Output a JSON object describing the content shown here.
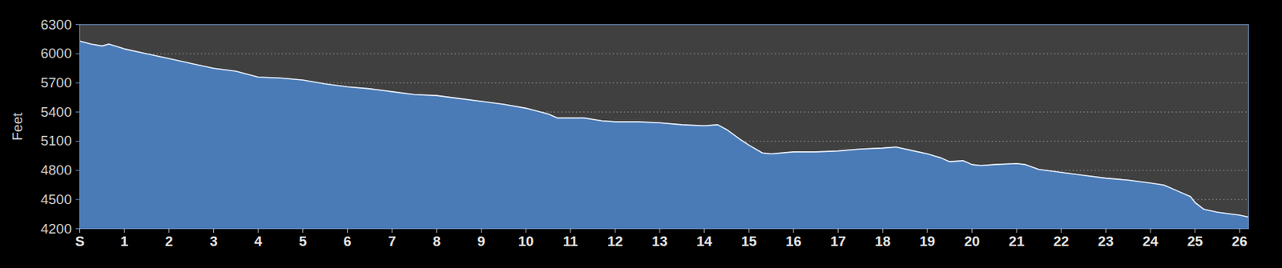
{
  "chart_data": {
    "type": "area",
    "y_label": "Feet",
    "color": "#4a7bb7",
    "line_color": "#e8eef8",
    "grid": true,
    "xlim": [
      0,
      26.2
    ],
    "ylim": [
      4200,
      6300
    ],
    "xticks": [
      {
        "value": 0,
        "label": "S"
      },
      1,
      2,
      3,
      4,
      5,
      6,
      7,
      8,
      9,
      10,
      11,
      12,
      13,
      14,
      15,
      16,
      17,
      18,
      19,
      20,
      21,
      22,
      23,
      24,
      25,
      26
    ],
    "yticks": [
      4200,
      4500,
      4800,
      5100,
      5400,
      5700,
      6000,
      6300
    ],
    "x": [
      0,
      0.25,
      0.5,
      0.65,
      1,
      1.5,
      2,
      2.5,
      3,
      3.5,
      4,
      4.5,
      5,
      5.5,
      6,
      6.5,
      7,
      7.5,
      8,
      8.5,
      9,
      9.5,
      10,
      10.5,
      10.7,
      11,
      11.3,
      11.7,
      12,
      12.5,
      13,
      13.5,
      14,
      14.3,
      14.5,
      14.8,
      15,
      15.3,
      15.5,
      16,
      16.5,
      17,
      17.5,
      18,
      18.3,
      18.7,
      19,
      19.3,
      19.5,
      19.8,
      20,
      20.2,
      20.5,
      21,
      21.2,
      21.5,
      22,
      22.5,
      23,
      23.5,
      24,
      24.3,
      24.6,
      24.9,
      25,
      25.2,
      25.5,
      26,
      26.2
    ],
    "values": [
      6130,
      6100,
      6080,
      6100,
      6050,
      6000,
      5950,
      5900,
      5850,
      5820,
      5760,
      5750,
      5730,
      5690,
      5660,
      5640,
      5610,
      5580,
      5570,
      5540,
      5510,
      5480,
      5440,
      5380,
      5340,
      5340,
      5340,
      5310,
      5300,
      5300,
      5290,
      5270,
      5260,
      5270,
      5220,
      5120,
      5060,
      4980,
      4970,
      4990,
      4990,
      5000,
      5020,
      5030,
      5040,
      5000,
      4970,
      4930,
      4890,
      4900,
      4860,
      4850,
      4860,
      4870,
      4860,
      4810,
      4780,
      4750,
      4720,
      4700,
      4670,
      4650,
      4590,
      4530,
      4470,
      4400,
      4370,
      4340,
      4320
    ]
  }
}
